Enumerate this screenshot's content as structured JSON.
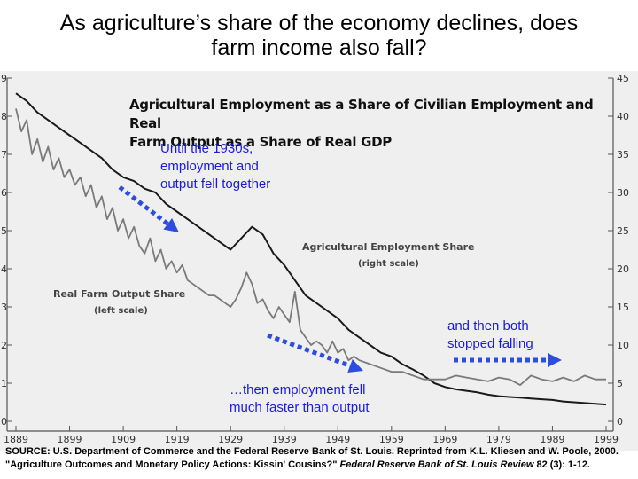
{
  "slide": {
    "title_line1": "As agriculture’s share of the economy declines, does",
    "title_line2": "farm income also fall?"
  },
  "chart_data": {
    "type": "line",
    "title": "Agricultural Employment as a Share of Civilian Employment and Real Farm Output as a Share of Real GDP",
    "title_line1": "Agricultural Employment as a Share of Civilian Employment and Real",
    "title_line2": "Farm Output as a Share of Real GDP",
    "x_ticks": [
      "1889",
      "1899",
      "1909",
      "1919",
      "1929",
      "1939",
      "1949",
      "1959",
      "1969",
      "1979",
      "1989",
      "1999"
    ],
    "xlim": [
      1889,
      2000
    ],
    "left_axis": {
      "ticks": [
        "0",
        "1",
        "2",
        "3",
        "4",
        "5",
        "6",
        "7",
        "8",
        "9"
      ],
      "ylim": [
        0,
        9
      ]
    },
    "right_axis": {
      "ticks": [
        "0",
        "5",
        "10",
        "15",
        "20",
        "25",
        "30",
        "35",
        "40",
        "45"
      ],
      "ylim": [
        0,
        45
      ]
    },
    "series": [
      {
        "name": "Agricultural Employment Share",
        "scale": "right scale",
        "color": "#1a1a1a",
        "points": [
          [
            1889,
            43
          ],
          [
            1891,
            42
          ],
          [
            1893,
            40.5
          ],
          [
            1895,
            39.5
          ],
          [
            1897,
            38.5
          ],
          [
            1899,
            37.5
          ],
          [
            1901,
            36.5
          ],
          [
            1903,
            35.5
          ],
          [
            1905,
            34.5
          ],
          [
            1907,
            33
          ],
          [
            1909,
            32
          ],
          [
            1911,
            31.5
          ],
          [
            1913,
            30.5
          ],
          [
            1915,
            30
          ],
          [
            1917,
            28.5
          ],
          [
            1919,
            27.5
          ],
          [
            1921,
            26.5
          ],
          [
            1923,
            25.5
          ],
          [
            1925,
            24.5
          ],
          [
            1927,
            23.5
          ],
          [
            1929,
            22.5
          ],
          [
            1931,
            24
          ],
          [
            1933,
            25.5
          ],
          [
            1935,
            24.5
          ],
          [
            1937,
            22
          ],
          [
            1939,
            20.5
          ],
          [
            1941,
            18.5
          ],
          [
            1943,
            16.5
          ],
          [
            1945,
            15.5
          ],
          [
            1947,
            14.5
          ],
          [
            1949,
            13.5
          ],
          [
            1951,
            12
          ],
          [
            1953,
            11
          ],
          [
            1955,
            10
          ],
          [
            1957,
            9
          ],
          [
            1959,
            8.5
          ],
          [
            1961,
            7.5
          ],
          [
            1963,
            6.8
          ],
          [
            1965,
            6
          ],
          [
            1967,
            5
          ],
          [
            1969,
            4.5
          ],
          [
            1971,
            4.2
          ],
          [
            1973,
            4
          ],
          [
            1975,
            3.8
          ],
          [
            1977,
            3.5
          ],
          [
            1979,
            3.3
          ],
          [
            1981,
            3.2
          ],
          [
            1983,
            3.1
          ],
          [
            1985,
            3
          ],
          [
            1987,
            2.9
          ],
          [
            1989,
            2.8
          ],
          [
            1991,
            2.6
          ],
          [
            1993,
            2.5
          ],
          [
            1995,
            2.4
          ],
          [
            1997,
            2.3
          ],
          [
            1999,
            2.2
          ]
        ]
      },
      {
        "name": "Real Farm Output Share",
        "scale": "left scale",
        "color": "#7a7a7a",
        "points": [
          [
            1889,
            8.2
          ],
          [
            1890,
            7.6
          ],
          [
            1891,
            7.9
          ],
          [
            1892,
            7.0
          ],
          [
            1893,
            7.4
          ],
          [
            1894,
            6.8
          ],
          [
            1895,
            7.2
          ],
          [
            1896,
            6.6
          ],
          [
            1897,
            6.9
          ],
          [
            1898,
            6.4
          ],
          [
            1899,
            6.6
          ],
          [
            1900,
            6.2
          ],
          [
            1901,
            6.4
          ],
          [
            1902,
            5.9
          ],
          [
            1903,
            6.2
          ],
          [
            1904,
            5.6
          ],
          [
            1905,
            5.9
          ],
          [
            1906,
            5.3
          ],
          [
            1907,
            5.6
          ],
          [
            1908,
            5.0
          ],
          [
            1909,
            5.3
          ],
          [
            1910,
            4.8
          ],
          [
            1911,
            5.1
          ],
          [
            1912,
            4.6
          ],
          [
            1913,
            4.4
          ],
          [
            1914,
            4.8
          ],
          [
            1915,
            4.2
          ],
          [
            1916,
            4.5
          ],
          [
            1917,
            4.0
          ],
          [
            1918,
            4.2
          ],
          [
            1919,
            3.9
          ],
          [
            1920,
            4.1
          ],
          [
            1921,
            3.7
          ],
          [
            1922,
            3.6
          ],
          [
            1923,
            3.5
          ],
          [
            1924,
            3.4
          ],
          [
            1925,
            3.3
          ],
          [
            1926,
            3.3
          ],
          [
            1927,
            3.2
          ],
          [
            1928,
            3.1
          ],
          [
            1929,
            3.0
          ],
          [
            1930,
            3.2
          ],
          [
            1931,
            3.5
          ],
          [
            1932,
            3.9
          ],
          [
            1933,
            3.6
          ],
          [
            1934,
            3.1
          ],
          [
            1935,
            3.2
          ],
          [
            1936,
            2.9
          ],
          [
            1937,
            2.7
          ],
          [
            1938,
            3.0
          ],
          [
            1939,
            2.8
          ],
          [
            1940,
            2.6
          ],
          [
            1941,
            3.4
          ],
          [
            1942,
            2.4
          ],
          [
            1943,
            2.2
          ],
          [
            1944,
            2.0
          ],
          [
            1945,
            2.1
          ],
          [
            1946,
            2.0
          ],
          [
            1947,
            1.8
          ],
          [
            1948,
            2.1
          ],
          [
            1949,
            1.8
          ],
          [
            1950,
            1.9
          ],
          [
            1951,
            1.6
          ],
          [
            1952,
            1.7
          ],
          [
            1953,
            1.6
          ],
          [
            1955,
            1.5
          ],
          [
            1957,
            1.4
          ],
          [
            1959,
            1.3
          ],
          [
            1961,
            1.3
          ],
          [
            1963,
            1.2
          ],
          [
            1965,
            1.1
          ],
          [
            1967,
            1.1
          ],
          [
            1969,
            1.1
          ],
          [
            1971,
            1.2
          ],
          [
            1973,
            1.15
          ],
          [
            1975,
            1.1
          ],
          [
            1977,
            1.05
          ],
          [
            1979,
            1.15
          ],
          [
            1981,
            1.1
          ],
          [
            1983,
            0.95
          ],
          [
            1985,
            1.2
          ],
          [
            1987,
            1.1
          ],
          [
            1989,
            1.05
          ],
          [
            1991,
            1.15
          ],
          [
            1993,
            1.05
          ],
          [
            1995,
            1.2
          ],
          [
            1997,
            1.1
          ],
          [
            1999,
            1.1
          ]
        ]
      }
    ],
    "series_labels": {
      "employment_name": "Agricultural Employment Share",
      "employment_scale": "(right scale)",
      "output_name": "Real Farm Output Share",
      "output_scale": "(left scale)"
    },
    "annotations": {
      "c1": [
        "Until the 1930s,",
        "employment and",
        "output fell together"
      ],
      "c2": [
        "and then both",
        "stopped falling"
      ],
      "c3": [
        "…then employment fell",
        "much faster than output"
      ]
    },
    "arrow_color": "#2b4de0"
  },
  "source": {
    "prefix": "SOURCE: U.S. Department of Commerce and the Federal Reserve Bank of St. Louis.   Reprinted from K.L. Kliesen and W. Poole, 2000. \"Agriculture Outcomes and Monetary Policy Actions: Kissin' Cousins?\" ",
    "italic": "Federal Reserve Bank of St. Louis Review",
    "suffix": " 82 (3): 1-12."
  }
}
